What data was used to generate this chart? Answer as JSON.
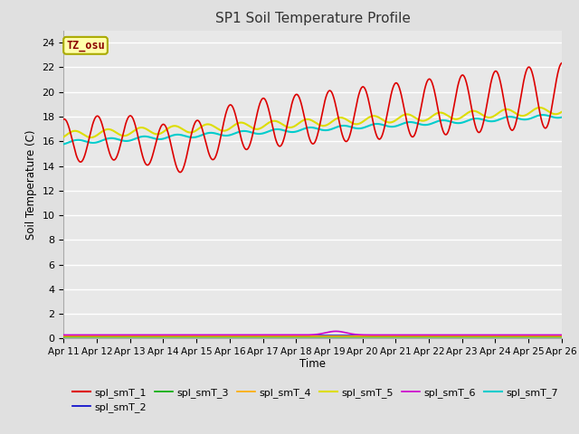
{
  "title": "SP1 Soil Temperature Profile",
  "xlabel": "Time",
  "ylabel": "Soil Temperature (C)",
  "tz_label": "TZ_osu",
  "ylim": [
    0,
    25
  ],
  "yticks": [
    0,
    2,
    4,
    6,
    8,
    10,
    12,
    14,
    16,
    18,
    20,
    22,
    24
  ],
  "x_tick_labels": [
    "Apr 11",
    "Apr 12",
    "Apr 13",
    "Apr 14",
    "Apr 15",
    "Apr 16",
    "Apr 17",
    "Apr 18",
    "Apr 19",
    "Apr 20",
    "Apr 21",
    "Apr 22",
    "Apr 23",
    "Apr 24",
    "Apr 25",
    "Apr 26"
  ],
  "series": {
    "spl_smT_1": {
      "color": "#dd0000",
      "linewidth": 1.2
    },
    "spl_smT_2": {
      "color": "#0000cc",
      "linewidth": 1.2
    },
    "spl_smT_3": {
      "color": "#00aa00",
      "linewidth": 1.2
    },
    "spl_smT_4": {
      "color": "#ffaa00",
      "linewidth": 1.2
    },
    "spl_smT_5": {
      "color": "#dddd00",
      "linewidth": 1.5
    },
    "spl_smT_6": {
      "color": "#cc00cc",
      "linewidth": 1.2
    },
    "spl_smT_7": {
      "color": "#00cccc",
      "linewidth": 1.5
    }
  },
  "background_color": "#e8e8e8",
  "grid_color": "#ffffff",
  "fig_bg": "#e0e0e0"
}
